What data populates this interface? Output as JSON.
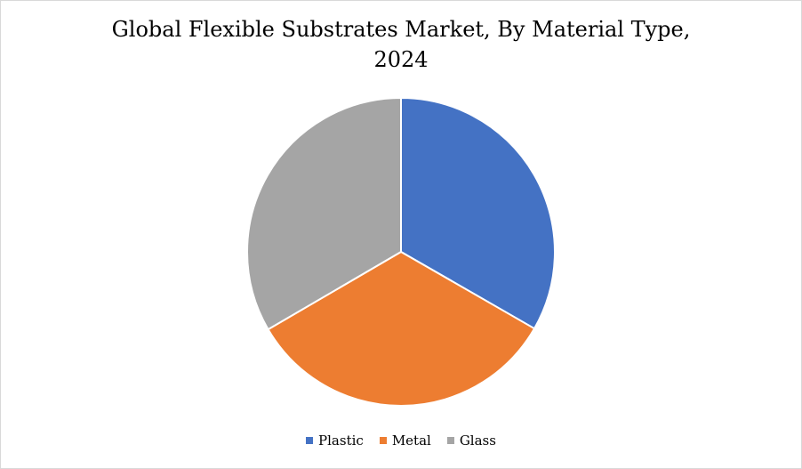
{
  "chart_data": {
    "type": "pie",
    "title": "Global Flexible Substrates Market, By Material Type,\n2024",
    "categories": [
      "Plastic",
      "Metal",
      "Glass"
    ],
    "values": [
      33.3,
      33.3,
      33.4
    ],
    "colors": [
      "#4472C4",
      "#ED7D31",
      "#A5A5A5"
    ],
    "legend_position": "bottom"
  }
}
